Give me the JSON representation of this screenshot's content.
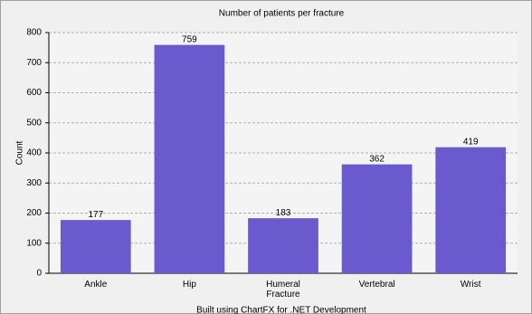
{
  "chart_data": {
    "type": "bar",
    "title": "Number of patients per fracture",
    "y_label": "Count",
    "categories": [
      "Ankle",
      "Hip",
      "Humeral Fracture",
      "Vertebral",
      "Wrist"
    ],
    "values": [
      177,
      759,
      183,
      362,
      419
    ],
    "color": "#6a5acd",
    "ylim": [
      0,
      800
    ],
    "yticks": [
      0,
      100,
      200,
      300,
      400,
      500,
      600,
      700,
      800
    ],
    "grid": true,
    "footer": "Built using ChartFX for .NET Development"
  }
}
